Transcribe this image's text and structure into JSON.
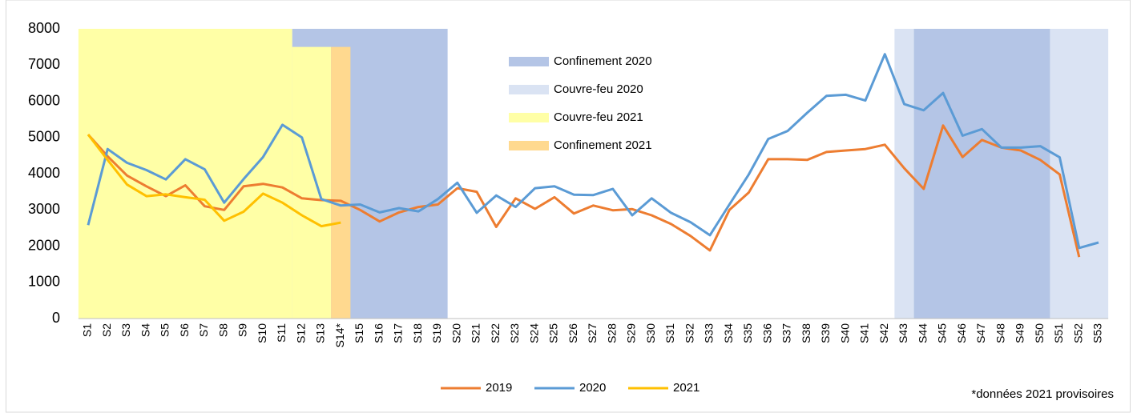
{
  "chart_data": {
    "type": "line",
    "categories": [
      "S1",
      "S2",
      "S3",
      "S4",
      "S5",
      "S6",
      "S7",
      "S8",
      "S9",
      "S10",
      "S11",
      "S12",
      "S13",
      "S14*",
      "S15",
      "S16",
      "S17",
      "S18",
      "S19",
      "S20",
      "S21",
      "S22",
      "S23",
      "S24",
      "S25",
      "S26",
      "S27",
      "S28",
      "S29",
      "S30",
      "S31",
      "S32",
      "S33",
      "S34",
      "S35",
      "S36",
      "S37",
      "S38",
      "S39",
      "S40",
      "S41",
      "S42",
      "S43",
      "S44",
      "S45",
      "S46",
      "S47",
      "S48",
      "S49",
      "S50",
      "S51",
      "S52",
      "S53"
    ],
    "series": [
      {
        "name": "2019",
        "color": "#ed7d31",
        "values": [
          5080,
          4480,
          3950,
          3650,
          3380,
          3680,
          3100,
          3000,
          3650,
          3720,
          3620,
          3320,
          3270,
          3250,
          3000,
          2680,
          2930,
          3080,
          3150,
          3600,
          3500,
          2530,
          3320,
          3030,
          3350,
          2900,
          3120,
          2990,
          3020,
          2850,
          2610,
          2280,
          1880,
          3000,
          3480,
          4400,
          4400,
          4380,
          4600,
          4640,
          4680,
          4800,
          4150,
          3580,
          5330,
          4460,
          4930,
          4720,
          4640,
          4380,
          3980,
          1700,
          null
        ]
      },
      {
        "name": "2020",
        "color": "#5b9bd5",
        "values": [
          2580,
          4680,
          4300,
          4100,
          3840,
          4400,
          4120,
          3200,
          3850,
          4460,
          5350,
          5000,
          3300,
          3120,
          3150,
          2930,
          3050,
          2960,
          3300,
          3750,
          2920,
          3400,
          3080,
          3600,
          3650,
          3420,
          3410,
          3580,
          2850,
          3320,
          2920,
          2660,
          2300,
          3150,
          3980,
          4960,
          5180,
          5680,
          6150,
          6180,
          6020,
          7300,
          5920,
          5750,
          6230,
          5050,
          5230,
          4720,
          4720,
          4760,
          4450,
          1950,
          2100
        ]
      },
      {
        "name": "2021",
        "color": "#ffc000",
        "values": [
          5080,
          4380,
          3700,
          3380,
          3430,
          3350,
          3280,
          2700,
          2950,
          3450,
          3200,
          2850,
          2550,
          2650,
          null,
          null,
          null,
          null,
          null,
          null,
          null,
          null,
          null,
          null,
          null,
          null,
          null,
          null,
          null,
          null,
          null,
          null,
          null,
          null,
          null,
          null,
          null,
          null,
          null,
          null,
          null,
          null,
          null,
          null,
          null,
          null,
          null,
          null,
          null,
          null,
          null,
          null,
          null
        ]
      }
    ],
    "regions": [
      {
        "name": "Confinement 2020",
        "color": "#b4c5e6",
        "spans": [
          {
            "from": "S12",
            "to": "S19",
            "top": 8000
          },
          {
            "from": "S44",
            "to": "S50",
            "top": 8000
          }
        ]
      },
      {
        "name": "Couvre-feu 2020",
        "color": "#dae3f3",
        "spans": [
          {
            "from": "S43",
            "to": "S53",
            "top": 8000
          }
        ]
      },
      {
        "name": "Couvre-feu 2021",
        "color": "#ffffa6",
        "spans": [
          {
            "from": "S1",
            "to": "S11",
            "top": 8000
          },
          {
            "from": "S12",
            "to": "S13",
            "top": 7500
          }
        ]
      },
      {
        "name": "Confinement 2021",
        "color": "#ffd98f",
        "spans": [
          {
            "from": "S14*",
            "to": "S14*",
            "top": 7500
          }
        ]
      }
    ],
    "ylim": [
      0,
      8000
    ],
    "yticks": [
      0,
      1000,
      2000,
      3000,
      4000,
      5000,
      6000,
      7000,
      8000
    ],
    "note": "*données 2021 provisoires"
  }
}
